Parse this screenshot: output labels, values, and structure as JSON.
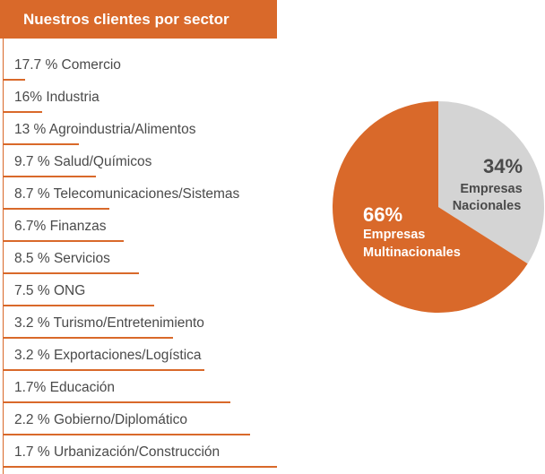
{
  "title": "Nuestros clientes por sector",
  "sectors": [
    {
      "label": "17.7 % Comercio"
    },
    {
      "label": "16% Industria"
    },
    {
      "label": "13 % Agroindustria/Alimentos"
    },
    {
      "label": "9.7 % Salud/Químicos"
    },
    {
      "label": "8.7 % Telecomunicaciones/Sistemas"
    },
    {
      "label": "6.7% Finanzas"
    },
    {
      "label": "8.5 % Servicios"
    },
    {
      "label": "7.5 % ONG"
    },
    {
      "label": "3.2 % Turismo/Entretenimiento"
    },
    {
      "label": "3.2 % Exportaciones/Logística"
    },
    {
      "label": "1.7% Educación"
    },
    {
      "label": "2.2 % Gobierno/Diplomático"
    },
    {
      "label": "1.7 % Urbanización/Construcción"
    }
  ],
  "colors": {
    "accent": "#d9692a",
    "grey": "#d4d4d4",
    "text": "#4a4a4a"
  },
  "chart_data": {
    "type": "pie",
    "slices": [
      {
        "pct_label": "34%",
        "line1": "Empresas",
        "line2": "Nacionales",
        "value": 34,
        "color": "#d4d4d4",
        "text_color": "#4a4a4a"
      },
      {
        "pct_label": "66%",
        "line1": "Empresas",
        "line2": "Multinacionales",
        "value": 66,
        "color": "#d9692a",
        "text_color": "#ffffff"
      }
    ]
  }
}
